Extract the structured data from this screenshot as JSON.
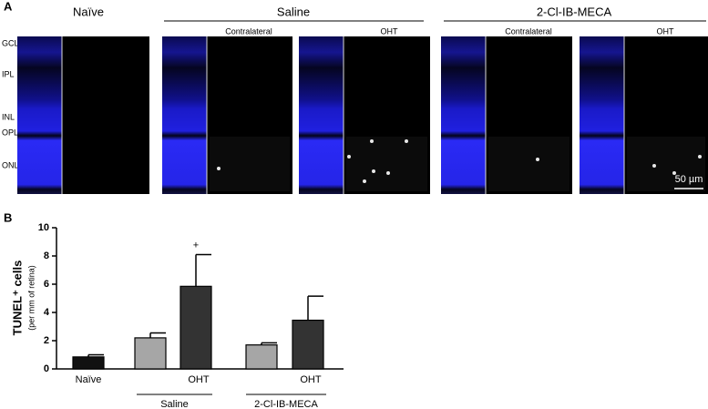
{
  "panel_a": {
    "label": "A",
    "groups": [
      "Naïve",
      "Saline",
      "2-Cl-IB-MECA"
    ],
    "subheads": [
      "Contralateral",
      "OHT",
      "Contralateral",
      "OHT"
    ],
    "layers": [
      "GCL",
      "IPL",
      "INL",
      "OPL",
      "ONL"
    ],
    "scale_bar": "50 µm"
  },
  "chart_data": {
    "type": "bar",
    "panel_label": "B",
    "y_label": "TUNEL⁺ cells",
    "y_sublabel": "(per mm of retina)",
    "categories": [
      "Naïve",
      null,
      "OHT",
      null,
      "OHT"
    ],
    "values": [
      0.85,
      2.2,
      5.85,
      1.7,
      3.45
    ],
    "errors": [
      0.15,
      0.35,
      2.25,
      0.15,
      1.7
    ],
    "colors": [
      "#111111",
      "#a6a6a6",
      "#333333",
      "#a6a6a6",
      "#333333"
    ],
    "groups": [
      "Saline",
      "2-Cl-IB-MECA"
    ],
    "annotation": "+",
    "ylim": [
      0,
      10
    ],
    "yticks": [
      0,
      2,
      4,
      6,
      8,
      10
    ]
  }
}
